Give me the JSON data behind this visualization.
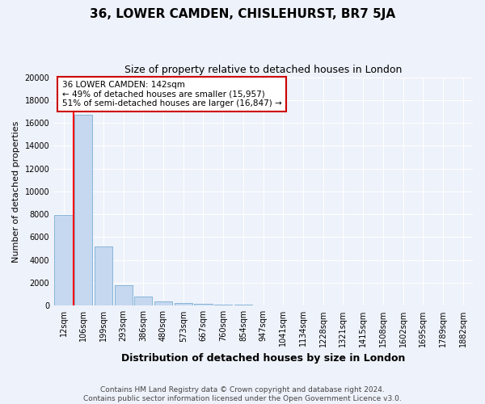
{
  "title": "36, LOWER CAMDEN, CHISLEHURST, BR7 5JA",
  "subtitle": "Size of property relative to detached houses in London",
  "xlabel": "Distribution of detached houses by size in London",
  "ylabel": "Number of detached properties",
  "categories": [
    "12sqm",
    "106sqm",
    "199sqm",
    "293sqm",
    "386sqm",
    "480sqm",
    "573sqm",
    "667sqm",
    "760sqm",
    "854sqm",
    "947sqm",
    "1041sqm",
    "1134sqm",
    "1228sqm",
    "1321sqm",
    "1415sqm",
    "1508sqm",
    "1602sqm",
    "1695sqm",
    "1789sqm",
    "1882sqm"
  ],
  "values": [
    7950,
    16700,
    5200,
    1800,
    780,
    390,
    210,
    145,
    95,
    100,
    0,
    0,
    0,
    0,
    0,
    0,
    0,
    0,
    0,
    0,
    0
  ],
  "bar_color": "#c5d8ef",
  "bar_edge_color": "#7bafd4",
  "red_line_x": 0.5,
  "annotation_text": "36 LOWER CAMDEN: 142sqm\n← 49% of detached houses are smaller (15,957)\n51% of semi-detached houses are larger (16,847) →",
  "annotation_box_color": "#ffffff",
  "annotation_box_edge": "#cc0000",
  "ylim": [
    0,
    20000
  ],
  "yticks": [
    0,
    2000,
    4000,
    6000,
    8000,
    10000,
    12000,
    14000,
    16000,
    18000,
    20000
  ],
  "footer_line1": "Contains HM Land Registry data © Crown copyright and database right 2024.",
  "footer_line2": "Contains public sector information licensed under the Open Government Licence v3.0.",
  "background_color": "#eef2fa",
  "grid_color": "#ffffff",
  "title_fontsize": 11,
  "subtitle_fontsize": 9,
  "xlabel_fontsize": 9,
  "ylabel_fontsize": 8,
  "tick_fontsize": 7,
  "footer_fontsize": 6.5,
  "annotation_fontsize": 7.5
}
